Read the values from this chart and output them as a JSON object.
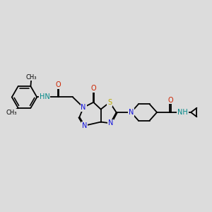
{
  "background_color": "#dcdcdc",
  "bond_color": "#000000",
  "bond_width": 1.3,
  "atom_colors": {
    "C": "#000000",
    "N": "#1010dd",
    "O": "#cc2200",
    "S": "#bbaa00",
    "NH": "#008888",
    "HN": "#008888"
  },
  "font_size": 7.0,
  "font_size_small": 6.0
}
